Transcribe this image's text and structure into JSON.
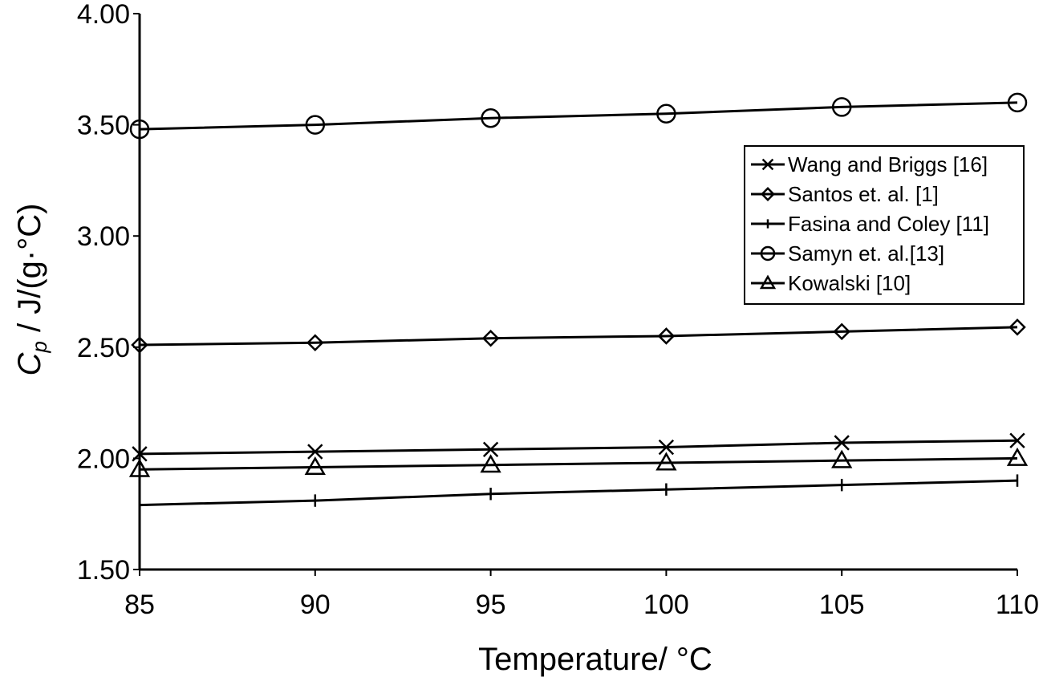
{
  "chart_data": {
    "type": "line",
    "xlabel": "Temperature/ °C",
    "ylabel_main": "C",
    "ylabel_sub": "p",
    "ylabel_rest": " / J/(g·°C)",
    "xlim": [
      85,
      110
    ],
    "ylim": [
      1.5,
      4.0
    ],
    "x_ticks": [
      "85",
      "90",
      "95",
      "100",
      "105",
      "110"
    ],
    "y_ticks": [
      "1.50",
      "2.00",
      "2.50",
      "3.00",
      "3.50",
      "4.00"
    ],
    "grid": false,
    "legend_position": "right",
    "x": [
      85,
      90,
      95,
      100,
      105,
      110
    ],
    "series": [
      {
        "name": "Wang and Briggs [16]",
        "marker": "x",
        "values": [
          2.02,
          2.03,
          2.04,
          2.05,
          2.07,
          2.08
        ]
      },
      {
        "name": "Santos et. al. [1]",
        "marker": "diamond",
        "values": [
          2.51,
          2.52,
          2.54,
          2.55,
          2.57,
          2.59
        ]
      },
      {
        "name": "Fasina and Coley [11]",
        "marker": "plus",
        "values": [
          1.79,
          1.81,
          1.84,
          1.86,
          1.88,
          1.9
        ]
      },
      {
        "name": "Samyn et. al.[13]",
        "marker": "circle",
        "values": [
          3.48,
          3.5,
          3.53,
          3.55,
          3.58,
          3.6
        ]
      },
      {
        "name": "Kowalski [10]",
        "marker": "triangle",
        "values": [
          1.95,
          1.96,
          1.97,
          1.98,
          1.99,
          2.0
        ]
      }
    ]
  }
}
